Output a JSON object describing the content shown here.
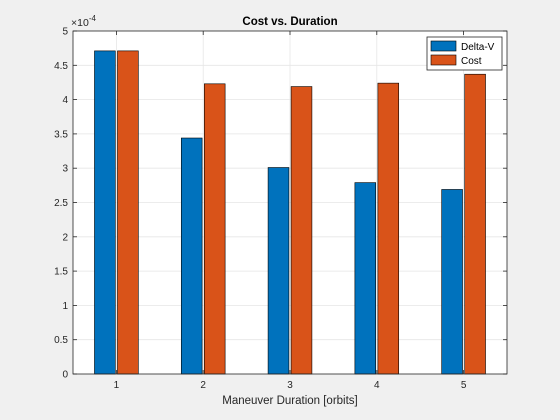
{
  "chart_data": {
    "type": "bar",
    "title": "Cost vs. Duration",
    "xlabel": "Maneuver Duration [orbits]",
    "ylabel": "",
    "exponent_base": "×10",
    "exponent_power": "-4",
    "categories": [
      "1",
      "2",
      "3",
      "4",
      "5"
    ],
    "ylim": [
      0,
      5
    ],
    "yticks": [
      "0",
      "0.5",
      "1",
      "1.5",
      "2",
      "2.5",
      "3",
      "3.5",
      "4",
      "4.5",
      "5"
    ],
    "ytick_values": [
      0,
      0.5,
      1,
      1.5,
      2,
      2.5,
      3,
      3.5,
      4,
      4.5,
      5
    ],
    "grid": true,
    "legend_position": "top-right",
    "series": [
      {
        "name": "Delta-V",
        "color": "#0072bd",
        "values": [
          4.71,
          3.44,
          3.01,
          2.79,
          2.69
        ]
      },
      {
        "name": "Cost",
        "color": "#d95319",
        "values": [
          4.71,
          4.23,
          4.19,
          4.24,
          4.37
        ]
      }
    ]
  }
}
